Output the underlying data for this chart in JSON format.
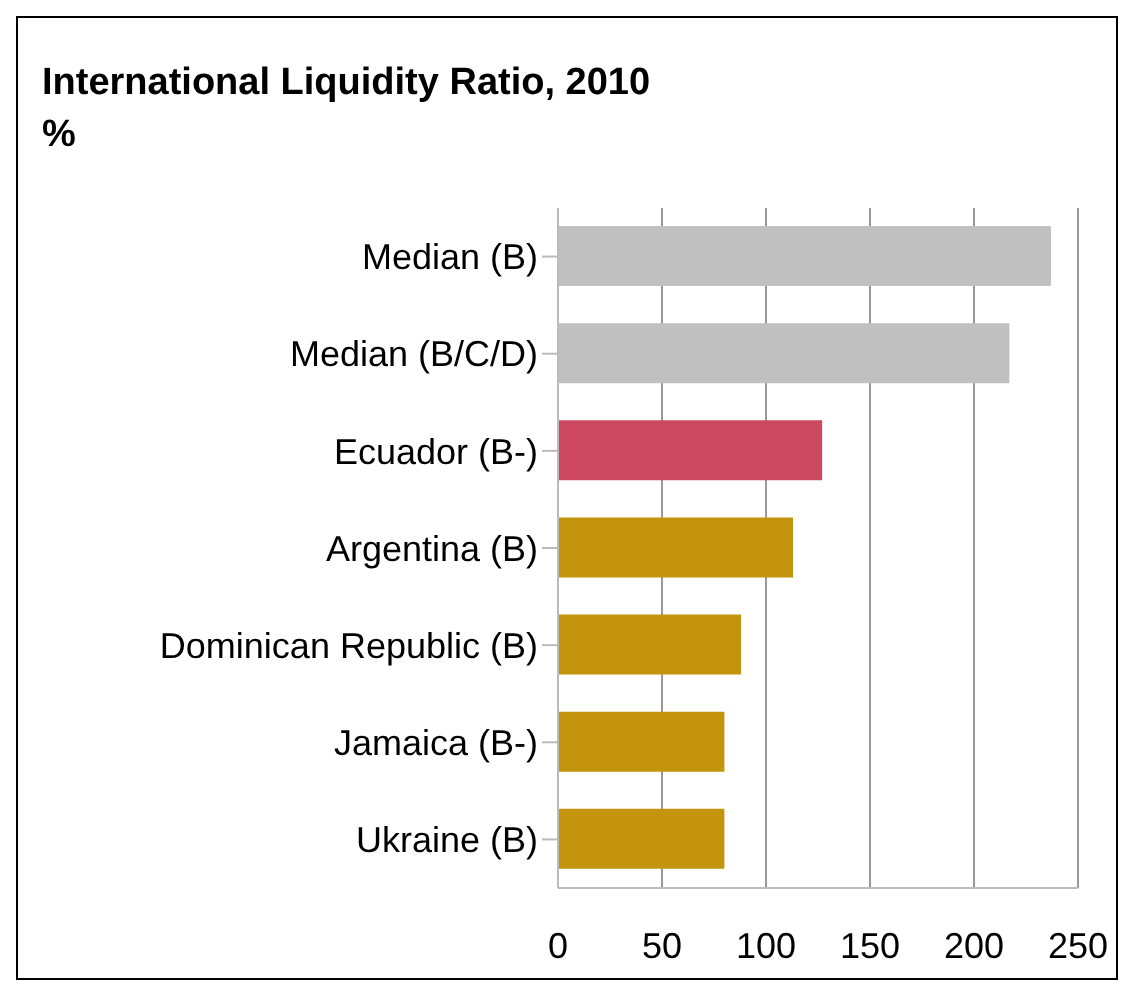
{
  "chart_data": {
    "type": "bar",
    "orientation": "horizontal",
    "title": "International Liquidity Ratio, 2010",
    "subtitle": "%",
    "categories": [
      "Median (B)",
      "Median (B/C/D)",
      "Ecuador (B-)",
      "Argentina (B)",
      "Dominican Republic (B)",
      "Jamaica (B-)",
      "Ukraine (B)"
    ],
    "values": [
      237,
      217,
      127,
      113,
      88,
      80,
      80
    ],
    "colors": [
      "#c0c0c0",
      "#c0c0c0",
      "#cc4860",
      "#c4940c",
      "#c4940c",
      "#c4940c",
      "#c4940c"
    ],
    "xlim": [
      0,
      250
    ],
    "xticks": [
      0,
      50,
      100,
      150,
      200,
      250
    ],
    "grid": "x"
  }
}
